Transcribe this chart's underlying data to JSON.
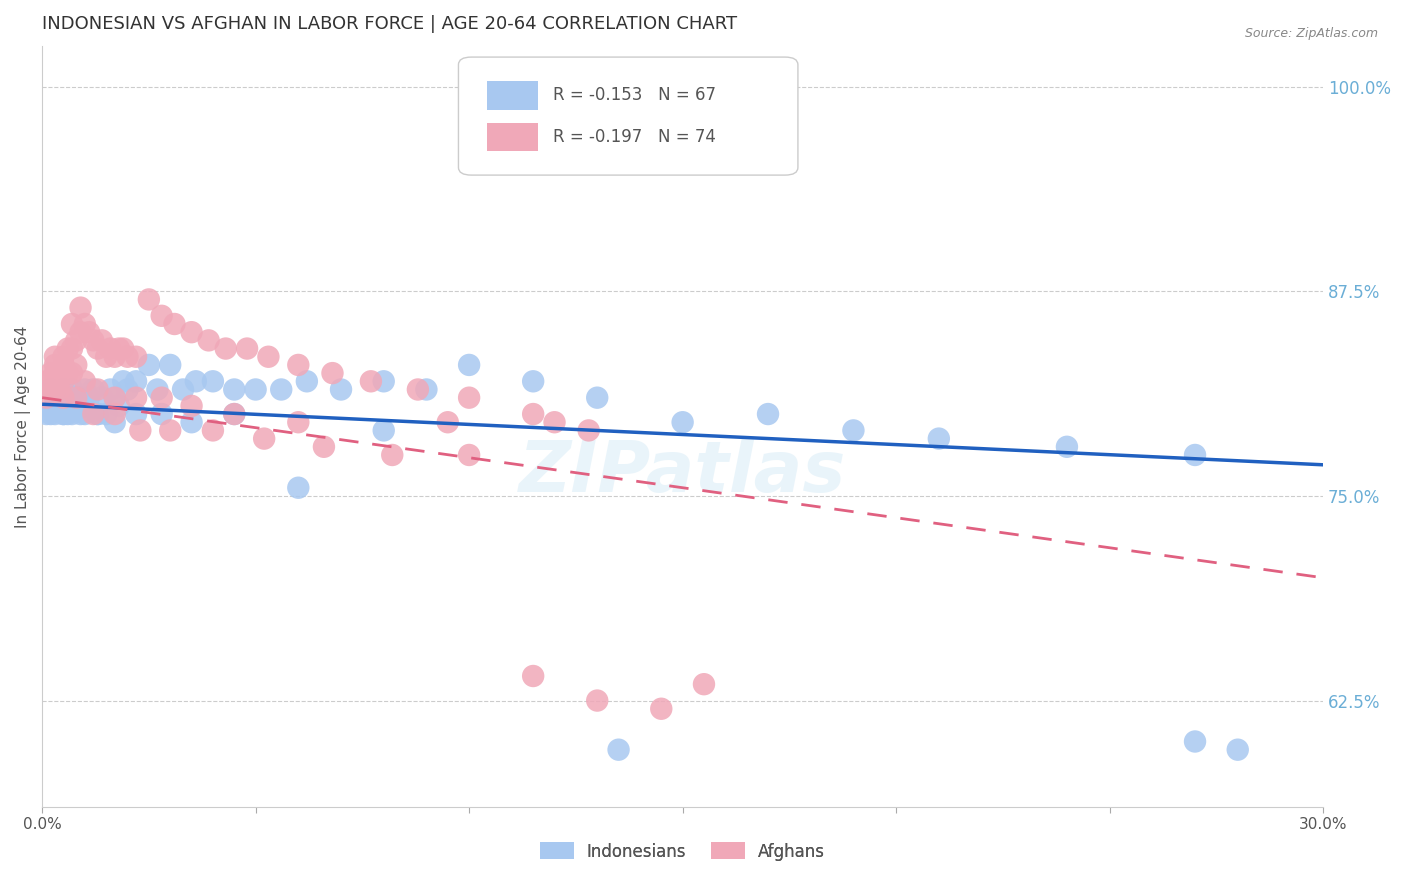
{
  "title": "INDONESIAN VS AFGHAN IN LABOR FORCE | AGE 20-64 CORRELATION CHART",
  "source": "Source: ZipAtlas.com",
  "ylabel": "In Labor Force | Age 20-64",
  "xlim": [
    0.0,
    0.3
  ],
  "ylim": [
    0.56,
    1.025
  ],
  "xticks": [
    0.0,
    0.05,
    0.1,
    0.15,
    0.2,
    0.25,
    0.3
  ],
  "xticklabels": [
    "0.0%",
    "",
    "",
    "",
    "",
    "",
    "30.0%"
  ],
  "yticks_right": [
    0.625,
    0.75,
    0.875,
    1.0
  ],
  "yticklabels_right": [
    "62.5%",
    "75.0%",
    "87.5%",
    "100.0%"
  ],
  "indonesian_color": "#a8c8f0",
  "afghan_color": "#f0a8b8",
  "indonesian_line_color": "#2060c0",
  "afghan_line_color": "#e06080",
  "legend_R_indonesian": "R = -0.153",
  "legend_N_indonesian": "N = 67",
  "legend_R_afghan": "R = -0.197",
  "legend_N_afghan": "N = 74",
  "legend_label_indonesian": "Indonesians",
  "legend_label_afghan": "Afghans",
  "watermark": "ZIPatlas",
  "title_fontsize": 13,
  "axis_label_fontsize": 11,
  "tick_fontsize": 11,
  "indonesian_x": [
    0.001,
    0.002,
    0.002,
    0.003,
    0.003,
    0.004,
    0.004,
    0.005,
    0.005,
    0.006,
    0.006,
    0.007,
    0.007,
    0.008,
    0.008,
    0.009,
    0.009,
    0.01,
    0.01,
    0.011,
    0.012,
    0.013,
    0.014,
    0.015,
    0.016,
    0.017,
    0.018,
    0.019,
    0.02,
    0.022,
    0.025,
    0.027,
    0.03,
    0.033,
    0.036,
    0.04,
    0.045,
    0.05,
    0.056,
    0.062,
    0.07,
    0.08,
    0.09,
    0.1,
    0.115,
    0.13,
    0.15,
    0.17,
    0.19,
    0.21,
    0.24,
    0.27,
    0.003,
    0.005,
    0.007,
    0.01,
    0.013,
    0.017,
    0.022,
    0.028,
    0.035,
    0.045,
    0.06,
    0.08,
    0.28,
    0.27,
    0.135
  ],
  "indonesian_y": [
    0.8,
    0.815,
    0.8,
    0.81,
    0.8,
    0.805,
    0.81,
    0.8,
    0.815,
    0.81,
    0.8,
    0.815,
    0.8,
    0.81,
    0.805,
    0.8,
    0.81,
    0.815,
    0.8,
    0.81,
    0.815,
    0.8,
    0.81,
    0.8,
    0.815,
    0.81,
    0.805,
    0.82,
    0.815,
    0.82,
    0.83,
    0.815,
    0.83,
    0.815,
    0.82,
    0.82,
    0.815,
    0.815,
    0.815,
    0.82,
    0.815,
    0.82,
    0.815,
    0.83,
    0.82,
    0.81,
    0.795,
    0.8,
    0.79,
    0.785,
    0.78,
    0.775,
    0.805,
    0.8,
    0.81,
    0.805,
    0.8,
    0.795,
    0.8,
    0.8,
    0.795,
    0.8,
    0.755,
    0.79,
    0.595,
    0.6,
    0.595
  ],
  "afghan_x": [
    0.001,
    0.001,
    0.002,
    0.002,
    0.003,
    0.003,
    0.004,
    0.004,
    0.005,
    0.005,
    0.006,
    0.006,
    0.007,
    0.007,
    0.008,
    0.008,
    0.009,
    0.009,
    0.01,
    0.011,
    0.012,
    0.013,
    0.014,
    0.015,
    0.016,
    0.017,
    0.018,
    0.019,
    0.02,
    0.022,
    0.025,
    0.028,
    0.031,
    0.035,
    0.039,
    0.043,
    0.048,
    0.053,
    0.06,
    0.068,
    0.077,
    0.088,
    0.1,
    0.115,
    0.003,
    0.005,
    0.007,
    0.01,
    0.013,
    0.017,
    0.022,
    0.028,
    0.035,
    0.045,
    0.06,
    0.003,
    0.005,
    0.008,
    0.012,
    0.017,
    0.023,
    0.03,
    0.04,
    0.052,
    0.066,
    0.082,
    0.1,
    0.12,
    0.095,
    0.128,
    0.145,
    0.115,
    0.13,
    0.155
  ],
  "afghan_y": [
    0.82,
    0.81,
    0.825,
    0.815,
    0.825,
    0.815,
    0.82,
    0.815,
    0.835,
    0.82,
    0.84,
    0.825,
    0.855,
    0.84,
    0.845,
    0.83,
    0.865,
    0.85,
    0.855,
    0.85,
    0.845,
    0.84,
    0.845,
    0.835,
    0.84,
    0.835,
    0.84,
    0.84,
    0.835,
    0.835,
    0.87,
    0.86,
    0.855,
    0.85,
    0.845,
    0.84,
    0.84,
    0.835,
    0.83,
    0.825,
    0.82,
    0.815,
    0.81,
    0.8,
    0.83,
    0.83,
    0.825,
    0.82,
    0.815,
    0.81,
    0.81,
    0.81,
    0.805,
    0.8,
    0.795,
    0.835,
    0.81,
    0.81,
    0.8,
    0.8,
    0.79,
    0.79,
    0.79,
    0.785,
    0.78,
    0.775,
    0.775,
    0.795,
    0.795,
    0.79,
    0.62,
    0.64,
    0.625,
    0.635
  ],
  "indo_line_x0": 0.0,
  "indo_line_y0": 0.806,
  "indo_line_x1": 0.3,
  "indo_line_y1": 0.769,
  "afgh_line_x0": 0.0,
  "afgh_line_y0": 0.81,
  "afgh_line_x1": 0.3,
  "afgh_line_y1": 0.7
}
